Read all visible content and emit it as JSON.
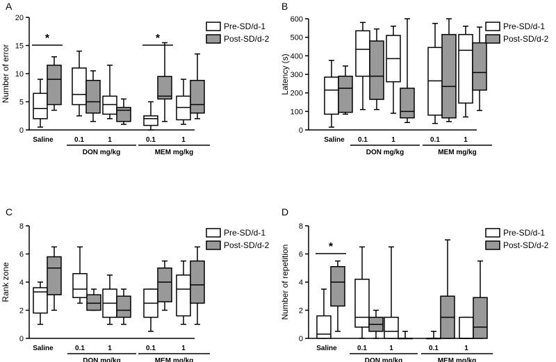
{
  "colors": {
    "pre": "#ffffff",
    "post": "#999999",
    "line": "#000000"
  },
  "chart_data": [
    {
      "type": "box",
      "panel": "A",
      "ylabel": "Number of error",
      "ylim": [
        0,
        20
      ],
      "yticks": [
        0,
        5,
        10,
        15,
        20
      ],
      "categories": [
        "Saline",
        "0.1",
        "1",
        "0.1",
        "1"
      ],
      "groups": [
        {
          "label": "DON mg/kg",
          "from": 1,
          "to": 2
        },
        {
          "label": "MEM mg/kg",
          "from": 3,
          "to": 4
        }
      ],
      "legend": [
        "Pre-SD/d-1",
        "Post-SD/d-2"
      ],
      "significance": [
        {
          "index": 0,
          "label": "*"
        },
        {
          "index": 3,
          "label": "*"
        }
      ],
      "series": [
        {
          "name": "Pre-SD/d-1",
          "boxes": [
            {
              "min": 0.5,
              "q1": 2,
              "median": 3.8,
              "q3": 6.5,
              "max": 9
            },
            {
              "min": 2.5,
              "q1": 4.5,
              "median": 6.3,
              "q3": 11,
              "max": 14
            },
            {
              "min": 2,
              "q1": 2.8,
              "median": 4.5,
              "q3": 6,
              "max": 11.5
            },
            {
              "min": 0,
              "q1": 0.8,
              "median": 2,
              "q3": 2.5,
              "max": 5
            },
            {
              "min": 1,
              "q1": 1.8,
              "median": 4,
              "q3": 6,
              "max": 9
            }
          ]
        },
        {
          "name": "Post-SD/d-2",
          "boxes": [
            {
              "min": 3.5,
              "q1": 4.5,
              "median": 9,
              "q3": 11.5,
              "max": 13
            },
            {
              "min": 1.5,
              "q1": 3,
              "median": 5,
              "q3": 8.8,
              "max": 10.5
            },
            {
              "min": 1,
              "q1": 1.5,
              "median": 3.5,
              "q3": 4,
              "max": 5.5
            },
            {
              "min": 1.5,
              "q1": 5.5,
              "median": 6,
              "q3": 9.5,
              "max": 15.5
            },
            {
              "min": 2,
              "q1": 3,
              "median": 4.5,
              "q3": 8.8,
              "max": 13.5
            }
          ]
        }
      ]
    },
    {
      "type": "box",
      "panel": "B",
      "ylabel": "Latency (s)",
      "ylim": [
        0,
        600
      ],
      "yticks": [
        0,
        100,
        200,
        300,
        400,
        500,
        600
      ],
      "categories": [
        "Saline",
        "0.1",
        "1",
        "0.1",
        "1"
      ],
      "groups": [
        {
          "label": "DON mg/kg",
          "from": 1,
          "to": 2
        },
        {
          "label": "MEM mg/kg",
          "from": 3,
          "to": 4
        }
      ],
      "legend": [
        "Pre-SD/d-1",
        "Post-SD/d-2"
      ],
      "significance": [],
      "series": [
        {
          "name": "Pre-SD/d-1",
          "boxes": [
            {
              "min": 15,
              "q1": 85,
              "median": 215,
              "q3": 285,
              "max": 375
            },
            {
              "min": 110,
              "q1": 290,
              "median": 435,
              "q3": 535,
              "max": 580
            },
            {
              "min": 90,
              "q1": 260,
              "median": 385,
              "q3": 510,
              "max": 560
            },
            {
              "min": 35,
              "q1": 80,
              "median": 265,
              "q3": 445,
              "max": 575
            },
            {
              "min": 70,
              "q1": 145,
              "median": 430,
              "q3": 515,
              "max": 560
            }
          ]
        },
        {
          "name": "Post-SD/d-2",
          "boxes": [
            {
              "min": 85,
              "q1": 95,
              "median": 225,
              "q3": 290,
              "max": 345
            },
            {
              "min": 110,
              "q1": 165,
              "median": 290,
              "q3": 480,
              "max": 545
            },
            {
              "min": 40,
              "q1": 65,
              "median": 100,
              "q3": 225,
              "max": 600
            },
            {
              "min": 45,
              "q1": 65,
              "median": 235,
              "q3": 515,
              "max": 600
            },
            {
              "min": 105,
              "q1": 215,
              "median": 310,
              "q3": 470,
              "max": 555
            }
          ]
        }
      ]
    },
    {
      "type": "box",
      "panel": "C",
      "ylabel": "Rank zone",
      "ylim": [
        0,
        8
      ],
      "yticks": [
        0,
        2,
        4,
        6,
        8
      ],
      "categories": [
        "Saline",
        "0.1",
        "1",
        "0.1",
        "1"
      ],
      "groups": [
        {
          "label": "DON mg/kg",
          "from": 1,
          "to": 2
        },
        {
          "label": "MEM mg/kg",
          "from": 3,
          "to": 4
        }
      ],
      "legend": [
        "Pre-SD/d-1",
        "Post-SD/d-2"
      ],
      "significance": [],
      "series": [
        {
          "name": "Pre-SD/d-1",
          "boxes": [
            {
              "min": 1,
              "q1": 1.8,
              "median": 3.3,
              "q3": 3.6,
              "max": 4
            },
            {
              "min": 2.5,
              "q1": 2.9,
              "median": 3.5,
              "q3": 4.6,
              "max": 6.5
            },
            {
              "min": 1,
              "q1": 1.5,
              "median": 2.5,
              "q3": 3.5,
              "max": 4.5
            },
            {
              "min": 0.5,
              "q1": 1.5,
              "median": 2.5,
              "q3": 3.5,
              "max": 3.5
            },
            {
              "min": 1,
              "q1": 1.6,
              "median": 3.5,
              "q3": 4.5,
              "max": 5.5
            }
          ]
        },
        {
          "name": "Post-SD/d-2",
          "boxes": [
            {
              "min": 2,
              "q1": 3.1,
              "median": 5,
              "q3": 5.8,
              "max": 6.5
            },
            {
              "min": 2,
              "q1": 2,
              "median": 2.5,
              "q3": 3.1,
              "max": 3.5
            },
            {
              "min": 1,
              "q1": 1.5,
              "median": 2,
              "q3": 3,
              "max": 3.5
            },
            {
              "min": 2,
              "q1": 2.6,
              "median": 4,
              "q3": 5,
              "max": 5.5
            },
            {
              "min": 1,
              "q1": 2.5,
              "median": 3.8,
              "q3": 5.5,
              "max": 6.5
            }
          ]
        }
      ]
    },
    {
      "type": "box",
      "panel": "D",
      "ylabel": "Number of repetition",
      "ylim": [
        0,
        8
      ],
      "yticks": [
        0,
        2,
        4,
        6,
        8
      ],
      "categories": [
        "Saline",
        "0.1",
        "1",
        "0.1",
        "1"
      ],
      "groups": [
        {
          "label": "DON mg/kg",
          "from": 1,
          "to": 2
        },
        {
          "label": "MEM mg/kg",
          "from": 3,
          "to": 4
        }
      ],
      "legend": [
        "Pre-SD/d-1",
        "Post-SD/d-2"
      ],
      "significance": [
        {
          "index": 0,
          "label": "*"
        }
      ],
      "series": [
        {
          "name": "Pre-SD/d-1",
          "boxes": [
            {
              "min": 0,
              "q1": 0,
              "median": 0.3,
              "q3": 1.6,
              "max": 3.5
            },
            {
              "min": 0,
              "q1": 0.8,
              "median": 1.5,
              "q3": 4.2,
              "max": 6.5
            },
            {
              "min": 0,
              "q1": 0,
              "median": 0.5,
              "q3": 1.5,
              "max": 6.5
            },
            {
              "min": 0,
              "q1": 0,
              "median": 0,
              "q3": 0,
              "max": 0.5
            },
            {
              "min": 0,
              "q1": 0,
              "median": 0,
              "q3": 1.5,
              "max": 1.5
            }
          ]
        },
        {
          "name": "Post-SD/d-2",
          "boxes": [
            {
              "min": 0.5,
              "q1": 2.3,
              "median": 4,
              "q3": 5.1,
              "max": 5.5
            },
            {
              "min": 0,
              "q1": 0.5,
              "median": 1,
              "q3": 1.5,
              "max": 2
            },
            {
              "min": 0,
              "q1": 0,
              "median": 0,
              "q3": 0,
              "max": 0.5
            },
            {
              "min": 0,
              "q1": 0,
              "median": 1.5,
              "q3": 3,
              "max": 7
            },
            {
              "min": 0,
              "q1": 0,
              "median": 0.8,
              "q3": 2.9,
              "max": 5.5
            }
          ]
        }
      ]
    }
  ]
}
